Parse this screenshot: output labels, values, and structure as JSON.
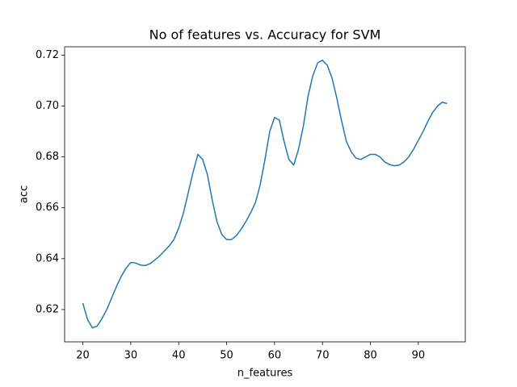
{
  "chart_data": {
    "type": "line",
    "title": "No of features vs. Accuracy for SVM",
    "x_label": "n_features",
    "y_label": "acc",
    "x": [
      20,
      21,
      22,
      23,
      24,
      25,
      26,
      27,
      28,
      29,
      30,
      31,
      32,
      33,
      34,
      35,
      36,
      37,
      38,
      39,
      40,
      41,
      42,
      43,
      44,
      45,
      46,
      47,
      48,
      49,
      50,
      51,
      52,
      53,
      54,
      55,
      56,
      57,
      58,
      59,
      60,
      61,
      62,
      63,
      64,
      65,
      66,
      67,
      68,
      69,
      70,
      71,
      72,
      73,
      74,
      75,
      76,
      77,
      78,
      79,
      80,
      81,
      82,
      83,
      84,
      85,
      86,
      87,
      88,
      89,
      90,
      91,
      92,
      93,
      94,
      95,
      96
    ],
    "series": [
      {
        "color": "#1f77b4",
        "values": [
          0.6225,
          0.616,
          0.6128,
          0.6135,
          0.6165,
          0.62,
          0.6245,
          0.629,
          0.633,
          0.6362,
          0.6385,
          0.6383,
          0.6375,
          0.6373,
          0.638,
          0.6395,
          0.641,
          0.643,
          0.645,
          0.6475,
          0.652,
          0.658,
          0.666,
          0.674,
          0.681,
          0.679,
          0.673,
          0.663,
          0.6545,
          0.6495,
          0.6475,
          0.6475,
          0.649,
          0.6515,
          0.6545,
          0.658,
          0.662,
          0.669,
          0.679,
          0.69,
          0.6955,
          0.6945,
          0.686,
          0.679,
          0.6768,
          0.683,
          0.692,
          0.704,
          0.712,
          0.717,
          0.718,
          0.716,
          0.711,
          0.703,
          0.694,
          0.686,
          0.682,
          0.6795,
          0.679,
          0.68,
          0.681,
          0.681,
          0.68,
          0.678,
          0.677,
          0.6765,
          0.6768,
          0.678,
          0.68,
          0.683,
          0.6865,
          0.69,
          0.694,
          0.6975,
          0.7,
          0.7015,
          0.701
        ]
      }
    ],
    "xlim": [
      16.2,
      99.8
    ],
    "xticks": [
      20,
      30,
      40,
      50,
      60,
      70,
      80,
      90
    ],
    "ylim": [
      0.6073,
      0.7233
    ],
    "yticks": [
      0.62,
      0.64,
      0.66,
      0.68,
      {
        "value": 0.7,
        "label": "0.70"
      },
      0.72
    ]
  }
}
